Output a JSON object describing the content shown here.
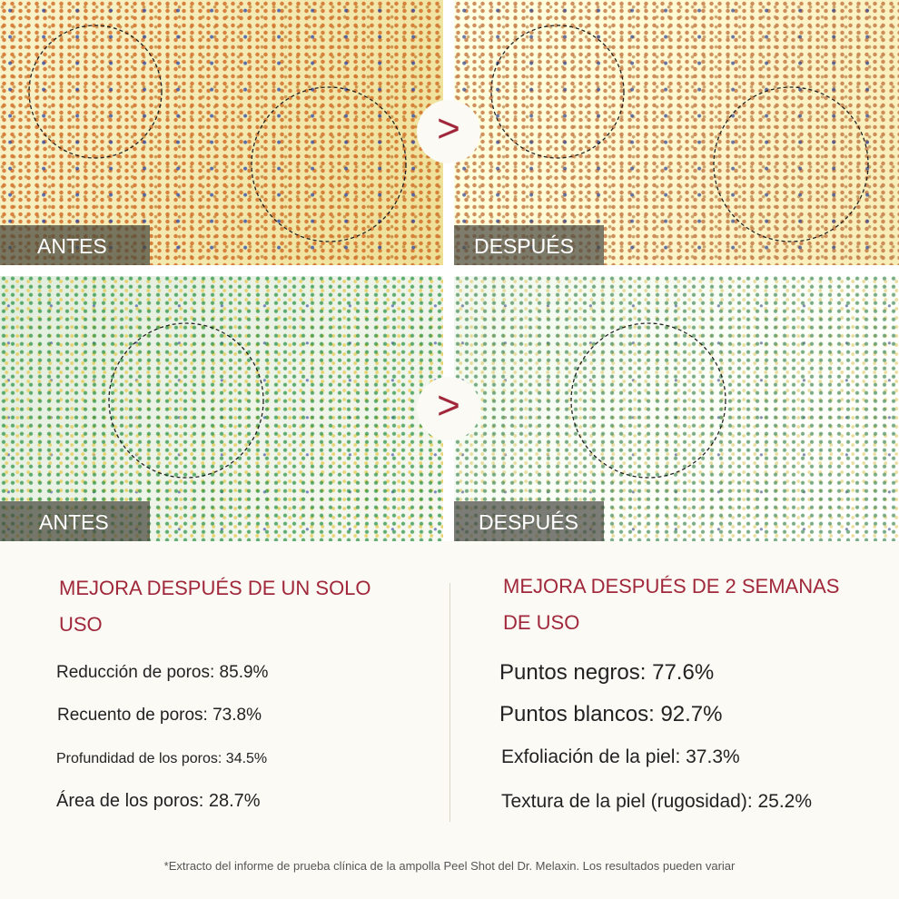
{
  "panels": [
    {
      "label": "ANTES"
    },
    {
      "label": "DESPUÉS"
    },
    {
      "label": "ANTES"
    },
    {
      "label": "DESPUÉS"
    }
  ],
  "arrows": [
    ">",
    ">"
  ],
  "sections": [
    {
      "heading": "MEJORA DESPUÉS DE UN SOLO USO",
      "items": [
        "Reducción de poros: 85.9%",
        "Recuento de poros: 73.8%",
        "Profundidad de los poros: 34.5%",
        "Área de los poros: 28.7%"
      ]
    },
    {
      "heading": "MEJORA DESPUÉS DE 2 SEMANAS DE USO",
      "items": [
        "Puntos negros: 77.6%",
        "Puntos blancos: 92.7%",
        "Exfoliación de la piel: 37.3%",
        "Textura de la piel (rugosidad): 25.2%"
      ]
    }
  ],
  "footnote": "*Extracto del informe de prueba clínica de la ampolla Peel Shot del Dr. Melaxin. Los resultados pueden variar"
}
